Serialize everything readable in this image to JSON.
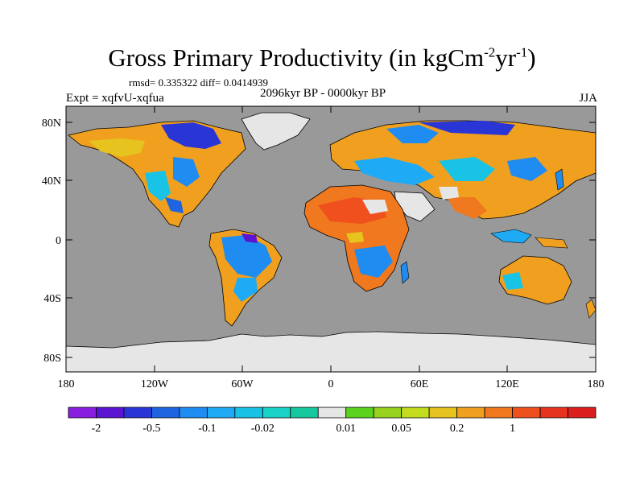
{
  "title": {
    "main": "Gross Primary Productivity (in kgCm",
    "sup1": "-2",
    "mid": "yr",
    "sup2": "-1",
    "end": ")"
  },
  "stats": "rmsd= 0.335322 diff= 0.0414939",
  "expt": "Expt = xqfvU-xqfua",
  "period": "2096kyr BP - 0000kyr BP",
  "season": "JJA",
  "map": {
    "ocean_color": "#999999",
    "ice_color": "#e6e6e6",
    "lat_labels": [
      "80N",
      "40N",
      "0",
      "40S",
      "80S"
    ],
    "lon_labels": [
      "180",
      "120W",
      "60W",
      "0",
      "60E",
      "120E",
      "180"
    ]
  },
  "colorbar": {
    "colors": [
      "#8a1ee0",
      "#5a14d2",
      "#2a35d6",
      "#1e64e0",
      "#1e8cf0",
      "#1eaaf5",
      "#19c3e6",
      "#19d2c8",
      "#16c8a0",
      "#e6e6e6",
      "#5ad21e",
      "#96d21e",
      "#c3dc1e",
      "#e6c31e",
      "#f0a01e",
      "#f0781e",
      "#f0501e",
      "#e6321e",
      "#dc1e1e"
    ],
    "labels": [
      "-2",
      "-0.5",
      "-0.1",
      "-0.02",
      "0.01",
      "0.05",
      "0.2",
      "1"
    ]
  }
}
